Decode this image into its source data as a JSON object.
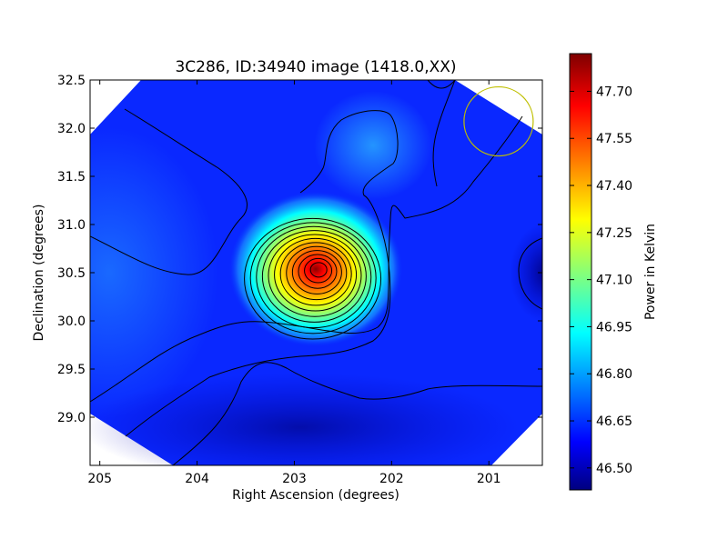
{
  "chart_data": {
    "type": "heatmap",
    "title": "3C286, ID:34940 image (1418.0,XX)",
    "xlabel": "Right Ascension (degrees)",
    "ylabel": "Declination (degrees)",
    "xlim": [
      205.1,
      200.45
    ],
    "ylim": [
      28.5,
      32.5
    ],
    "x_ticks": [
      "205",
      "204",
      "203",
      "202",
      "201"
    ],
    "x_tick_values": [
      205,
      204,
      203,
      202,
      201
    ],
    "y_ticks": [
      "29.0",
      "29.5",
      "30.0",
      "30.5",
      "31.0",
      "31.5",
      "32.0",
      "32.5"
    ],
    "y_tick_values": [
      29.0,
      29.5,
      30.0,
      30.5,
      31.0,
      31.5,
      32.0,
      32.5
    ],
    "colorbar": {
      "label": "Power in Kelvin",
      "colormap": "jet",
      "range": [
        46.43,
        47.82
      ],
      "ticks": [
        "46.50",
        "46.65",
        "46.80",
        "46.95",
        "47.10",
        "47.25",
        "47.40",
        "47.55",
        "47.70"
      ],
      "tick_values": [
        46.5,
        46.65,
        46.8,
        46.95,
        47.1,
        47.25,
        47.4,
        47.55,
        47.7
      ]
    },
    "peak": {
      "ra": 202.75,
      "dec": 30.53,
      "value": 47.8
    },
    "secondary_maximum": {
      "ra": 202.2,
      "dec": 31.9,
      "value": 46.85
    },
    "minimum_region": {
      "ra": 200.45,
      "dec": 30.5,
      "value": 46.45
    },
    "beam_circle": {
      "ra": 200.9,
      "dec": 32.07,
      "color": "#bfbf00"
    },
    "contour_color": "#000000",
    "background_colors": [
      "#00007f",
      "#0000ff",
      "#0080ff",
      "#00ffff",
      "#80ff80",
      "#ffff00",
      "#ff8000",
      "#ff0000",
      "#7f0000"
    ]
  }
}
